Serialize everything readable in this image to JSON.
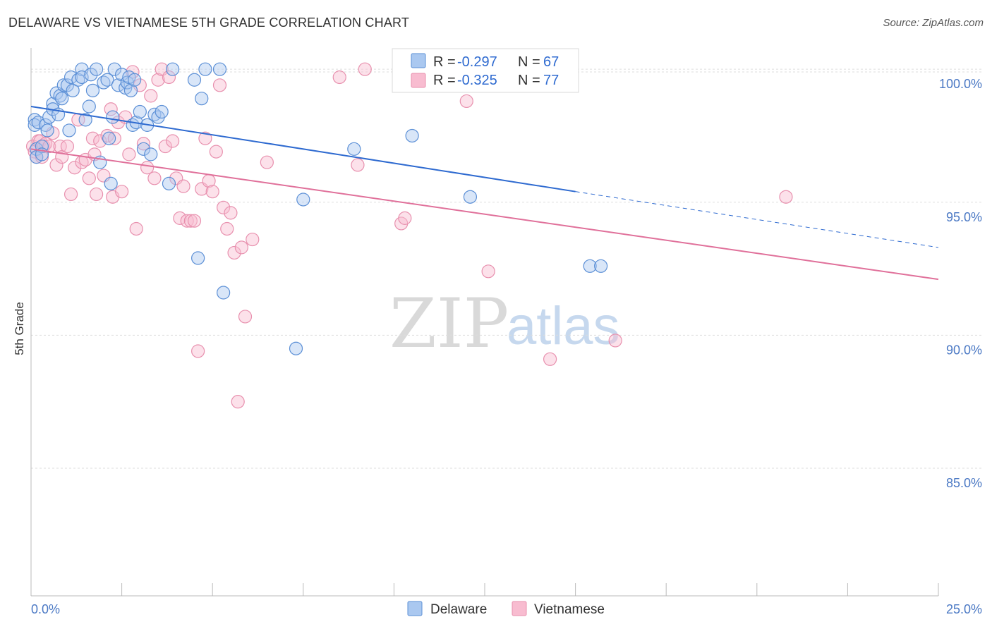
{
  "title": "DELAWARE VS VIETNAMESE 5TH GRADE CORRELATION CHART",
  "source": "Source: ZipAtlas.com",
  "watermark": {
    "zip": "ZIP",
    "atlas": "atlas"
  },
  "legend": {
    "rows": [
      {
        "r_label": "R =",
        "r_value": "-0.297",
        "n_label": "N =",
        "n_value": "67"
      },
      {
        "r_label": "R =",
        "r_value": "-0.325",
        "n_label": "N =",
        "n_value": "77"
      }
    ]
  },
  "bottom_legend": [
    "Delaware",
    "Vietnamese"
  ],
  "chart_data": {
    "type": "scatter",
    "title": "DELAWARE VS VIETNAMESE 5TH GRADE CORRELATION CHART",
    "xlabel": "",
    "ylabel": "5th Grade",
    "xlim": [
      0,
      25
    ],
    "ylim": [
      80.2,
      100.8
    ],
    "x_tick_labels": [
      "0.0%",
      "25.0%"
    ],
    "y_ticks": [
      85,
      90,
      95,
      100
    ],
    "y_tick_labels": [
      "85.0%",
      "90.0%",
      "95.0%",
      "100.0%"
    ],
    "grid": true,
    "legend_position": "top-center",
    "colors": {
      "delaware_fill": "#aac8f0",
      "delaware_stroke": "#5b8fd6",
      "delaware_line": "#2e6ad0",
      "vietnamese_fill": "#f8bcd0",
      "vietnamese_stroke": "#e890ae",
      "vietnamese_line": "#e0709a"
    },
    "series": [
      {
        "name": "Delaware",
        "r": -0.297,
        "n": 67,
        "trend": {
          "x0": 0.0,
          "y0": 98.6,
          "x1": 15.0,
          "y1": 95.4,
          "dash_to_x": 25.0,
          "dash_to_y": 93.3
        },
        "points": [
          [
            0.1,
            98.1
          ],
          [
            0.1,
            97.9
          ],
          [
            0.15,
            97.0
          ],
          [
            0.15,
            96.7
          ],
          [
            0.2,
            98.0
          ],
          [
            0.3,
            97.1
          ],
          [
            0.3,
            96.8
          ],
          [
            0.4,
            97.9
          ],
          [
            0.45,
            97.7
          ],
          [
            0.5,
            98.2
          ],
          [
            0.6,
            98.7
          ],
          [
            0.6,
            98.5
          ],
          [
            0.7,
            99.1
          ],
          [
            0.75,
            98.3
          ],
          [
            0.8,
            99.0
          ],
          [
            0.85,
            98.9
          ],
          [
            0.9,
            99.4
          ],
          [
            1.0,
            99.4
          ],
          [
            1.05,
            97.7
          ],
          [
            1.1,
            99.7
          ],
          [
            1.15,
            99.2
          ],
          [
            1.3,
            99.6
          ],
          [
            1.4,
            100.0
          ],
          [
            1.4,
            99.7
          ],
          [
            1.5,
            98.1
          ],
          [
            1.6,
            98.6
          ],
          [
            1.65,
            99.8
          ],
          [
            1.7,
            99.2
          ],
          [
            1.8,
            100.0
          ],
          [
            1.9,
            96.5
          ],
          [
            2.0,
            99.5
          ],
          [
            2.1,
            99.6
          ],
          [
            2.15,
            97.4
          ],
          [
            2.2,
            95.7
          ],
          [
            2.25,
            98.2
          ],
          [
            2.3,
            100.0
          ],
          [
            2.4,
            99.4
          ],
          [
            2.5,
            99.8
          ],
          [
            2.6,
            99.3
          ],
          [
            2.65,
            99.5
          ],
          [
            2.7,
            99.7
          ],
          [
            2.75,
            99.2
          ],
          [
            2.8,
            97.9
          ],
          [
            2.85,
            99.6
          ],
          [
            2.9,
            98.0
          ],
          [
            3.0,
            98.4
          ],
          [
            3.1,
            97.0
          ],
          [
            3.2,
            97.9
          ],
          [
            3.3,
            96.8
          ],
          [
            3.4,
            98.3
          ],
          [
            3.5,
            98.2
          ],
          [
            3.6,
            98.4
          ],
          [
            3.8,
            95.7
          ],
          [
            3.9,
            100.0
          ],
          [
            4.5,
            99.6
          ],
          [
            4.6,
            92.9
          ],
          [
            4.7,
            98.9
          ],
          [
            4.8,
            100.0
          ],
          [
            5.2,
            100.0
          ],
          [
            5.3,
            91.6
          ],
          [
            7.3,
            89.5
          ],
          [
            7.5,
            95.1
          ],
          [
            8.9,
            97.0
          ],
          [
            10.5,
            97.5
          ],
          [
            12.1,
            95.2
          ],
          [
            15.4,
            92.6
          ],
          [
            15.7,
            92.6
          ]
        ]
      },
      {
        "name": "Vietnamese",
        "r": -0.325,
        "n": 77,
        "trend": {
          "x0": 0.0,
          "y0": 97.0,
          "x1": 25.0,
          "y1": 92.1
        },
        "points": [
          [
            0.05,
            97.1
          ],
          [
            0.1,
            96.9
          ],
          [
            0.15,
            96.7
          ],
          [
            0.2,
            97.3
          ],
          [
            0.25,
            97.3
          ],
          [
            0.3,
            96.7
          ],
          [
            0.35,
            97.1
          ],
          [
            0.4,
            97.2
          ],
          [
            0.5,
            97.1
          ],
          [
            0.6,
            97.6
          ],
          [
            0.7,
            96.4
          ],
          [
            0.8,
            97.1
          ],
          [
            0.85,
            96.7
          ],
          [
            1.0,
            97.1
          ],
          [
            1.1,
            95.3
          ],
          [
            1.2,
            96.3
          ],
          [
            1.3,
            98.1
          ],
          [
            1.4,
            96.5
          ],
          [
            1.5,
            96.6
          ],
          [
            1.6,
            95.9
          ],
          [
            1.7,
            97.4
          ],
          [
            1.75,
            96.8
          ],
          [
            1.8,
            95.3
          ],
          [
            1.9,
            97.3
          ],
          [
            2.0,
            96.0
          ],
          [
            2.1,
            97.5
          ],
          [
            2.2,
            98.5
          ],
          [
            2.25,
            95.2
          ],
          [
            2.3,
            97.4
          ],
          [
            2.4,
            98.0
          ],
          [
            2.5,
            95.4
          ],
          [
            2.6,
            98.2
          ],
          [
            2.7,
            96.8
          ],
          [
            2.8,
            99.9
          ],
          [
            2.9,
            94.0
          ],
          [
            3.0,
            99.4
          ],
          [
            3.1,
            97.2
          ],
          [
            3.2,
            96.3
          ],
          [
            3.3,
            99.0
          ],
          [
            3.4,
            95.9
          ],
          [
            3.5,
            99.6
          ],
          [
            3.6,
            100.0
          ],
          [
            3.7,
            97.1
          ],
          [
            3.8,
            99.7
          ],
          [
            3.9,
            97.3
          ],
          [
            4.0,
            95.9
          ],
          [
            4.1,
            94.4
          ],
          [
            4.2,
            95.6
          ],
          [
            4.3,
            94.3
          ],
          [
            4.4,
            94.3
          ],
          [
            4.5,
            94.3
          ],
          [
            4.6,
            89.4
          ],
          [
            4.7,
            95.5
          ],
          [
            4.8,
            97.4
          ],
          [
            4.9,
            95.8
          ],
          [
            5.0,
            95.4
          ],
          [
            5.1,
            96.9
          ],
          [
            5.2,
            99.4
          ],
          [
            5.3,
            94.8
          ],
          [
            5.4,
            94.0
          ],
          [
            5.5,
            94.6
          ],
          [
            5.6,
            93.1
          ],
          [
            5.7,
            87.5
          ],
          [
            5.8,
            93.3
          ],
          [
            5.9,
            90.7
          ],
          [
            6.1,
            93.6
          ],
          [
            6.5,
            96.5
          ],
          [
            8.5,
            99.7
          ],
          [
            9.0,
            96.4
          ],
          [
            9.2,
            100.0
          ],
          [
            10.2,
            94.2
          ],
          [
            10.3,
            94.4
          ],
          [
            12.0,
            98.8
          ],
          [
            12.6,
            92.4
          ],
          [
            14.3,
            89.1
          ],
          [
            16.1,
            89.8
          ],
          [
            20.8,
            95.2
          ]
        ]
      }
    ]
  }
}
